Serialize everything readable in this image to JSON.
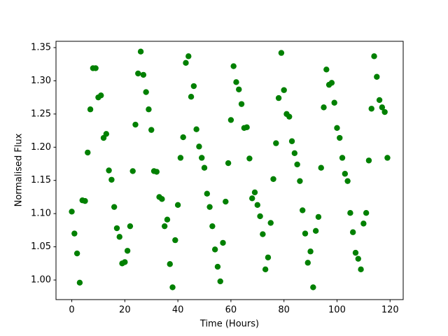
{
  "chart_data": {
    "type": "scatter",
    "xlabel": "Time (Hours)",
    "ylabel": "Normalised Flux",
    "color": "#008000",
    "x": [
      0,
      1,
      2,
      3,
      4,
      5,
      6,
      7,
      8,
      9,
      10,
      11,
      12,
      13,
      14,
      15,
      16,
      17,
      18,
      19,
      20,
      21,
      22,
      23,
      24,
      25,
      26,
      27,
      28,
      29,
      30,
      31,
      32,
      33,
      34,
      35,
      36,
      37,
      38,
      39,
      40,
      41,
      42,
      43,
      44,
      45,
      46,
      47,
      48,
      49,
      50,
      51,
      52,
      53,
      54,
      55,
      56,
      57,
      58,
      59,
      60,
      61,
      62,
      63,
      64,
      65,
      66,
      67,
      68,
      69,
      70,
      71,
      72,
      73,
      74,
      75,
      76,
      77,
      78,
      79,
      80,
      81,
      82,
      83,
      84,
      85,
      86,
      87,
      88,
      89,
      90,
      91,
      92,
      93,
      94,
      95,
      96,
      97,
      98,
      99,
      100,
      101,
      102,
      103,
      104,
      105,
      106,
      107,
      108,
      109,
      110,
      111,
      112,
      113,
      114,
      115,
      116,
      117,
      118,
      119
    ],
    "values": [
      1.103,
      1.07,
      1.04,
      0.996,
      1.12,
      1.119,
      1.192,
      1.257,
      1.319,
      1.319,
      1.275,
      1.278,
      1.214,
      1.22,
      1.165,
      1.151,
      1.11,
      1.078,
      1.065,
      1.025,
      1.027,
      1.044,
      1.081,
      1.164,
      1.234,
      1.311,
      1.344,
      1.309,
      1.283,
      1.257,
      1.226,
      1.164,
      1.163,
      1.125,
      1.122,
      1.081,
      1.091,
      1.024,
      0.989,
      1.06,
      1.113,
      1.184,
      1.215,
      1.327,
      1.337,
      1.276,
      1.292,
      1.227,
      1.201,
      1.184,
      1.169,
      1.13,
      1.11,
      1.081,
      1.046,
      1.02,
      0.998,
      1.056,
      1.118,
      1.176,
      1.241,
      1.322,
      1.298,
      1.287,
      1.265,
      1.229,
      1.23,
      1.183,
      1.123,
      1.132,
      1.113,
      1.096,
      1.069,
      1.016,
      1.034,
      1.086,
      1.152,
      1.206,
      1.274,
      1.342,
      1.286,
      1.25,
      1.246,
      1.209,
      1.191,
      1.174,
      1.149,
      1.105,
      1.07,
      1.026,
      1.043,
      0.989,
      1.074,
      1.095,
      1.169,
      1.26,
      1.317,
      1.294,
      1.297,
      1.267,
      1.229,
      1.214,
      1.184,
      1.16,
      1.149,
      1.101,
      1.072,
      1.041,
      1.032,
      1.016,
      1.085,
      1.101,
      1.18,
      1.258,
      1.337,
      1.306,
      1.271,
      1.26,
      1.253,
      1.184
    ],
    "xlim": [
      -5.95,
      124.95
    ],
    "ylim": [
      0.9705,
      1.3595
    ],
    "xticks": [
      0,
      20,
      40,
      60,
      80,
      100,
      120
    ],
    "yticks": [
      {
        "value": 1,
        "label": "1.00"
      },
      1.05,
      {
        "value": 1.1,
        "label": "1.10"
      },
      1.15,
      {
        "value": 1.2,
        "label": "1.20"
      },
      1.25,
      {
        "value": 1.3,
        "label": "1.30"
      },
      1.35
    ]
  }
}
